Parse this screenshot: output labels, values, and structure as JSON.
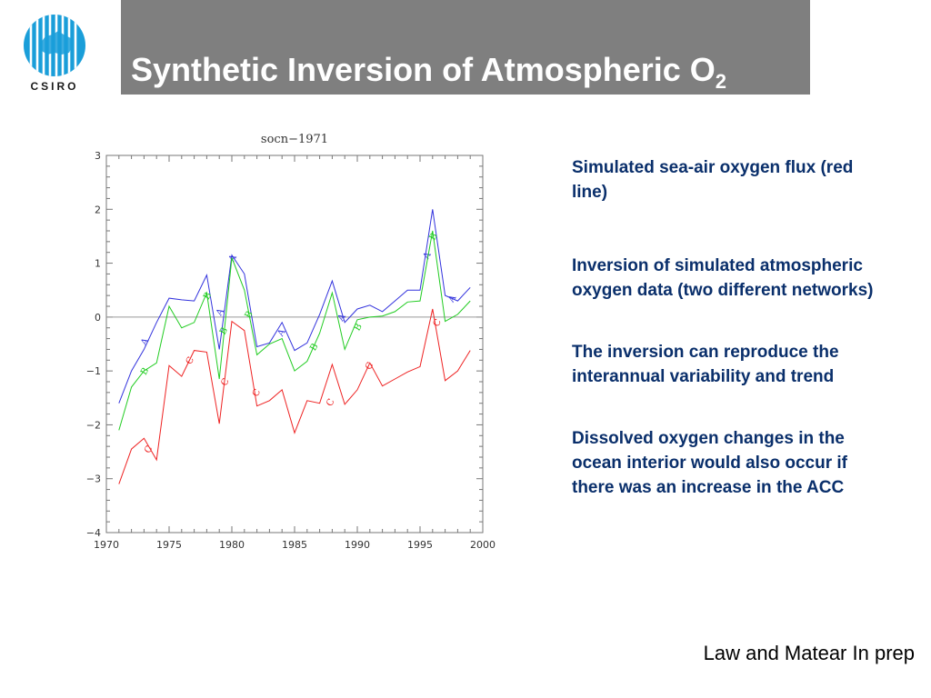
{
  "logo": {
    "text": "CSIRO"
  },
  "slide": {
    "title": "Synthetic Inversion of Atmospheric O",
    "title_subscript": "2",
    "text1": "Simulated sea-air oxygen flux (red line)",
    "text2": "Inversion of simulated atmospheric oxygen data (two different networks)",
    "text3": "The inversion can reproduce the interannual variability and trend",
    "text4": "Dissolved oxygen changes in the ocean interior would also occur if there was an increase in the ACC",
    "credit": "Law and Matear In prep"
  },
  "colors": {
    "title_bar": "#7f7f7f",
    "body_text": "#0a2f6b",
    "logo": "#1a9ed9"
  },
  "chart_data": {
    "type": "line",
    "title": "socn−1971",
    "xlim": [
      1970,
      2000
    ],
    "ylim": [
      -4,
      3
    ],
    "xticks": [
      1970,
      1975,
      1980,
      1985,
      1990,
      1995,
      2000
    ],
    "yticks": [
      3,
      2,
      1,
      0,
      -1,
      -2,
      -3,
      -4
    ],
    "zero_line": true,
    "series": [
      {
        "label_char": "A",
        "color": "#3333dd",
        "x": [
          1971,
          1972,
          1973,
          1974,
          1975,
          1976,
          1977,
          1978,
          1979,
          1980,
          1981,
          1982,
          1983,
          1984,
          1985,
          1986,
          1987,
          1988,
          1989,
          1990,
          1991,
          1992,
          1993,
          1994,
          1995,
          1996,
          1997,
          1998,
          1999
        ],
        "values": [
          -1.6,
          -1.0,
          -0.6,
          -0.1,
          0.35,
          0.32,
          0.3,
          0.78,
          -0.6,
          1.15,
          0.8,
          -0.55,
          -0.48,
          -0.1,
          -0.62,
          -0.48,
          0.05,
          0.67,
          -0.1,
          0.15,
          0.22,
          0.1,
          0.3,
          0.5,
          0.5,
          2.0,
          0.4,
          0.3,
          0.55
        ],
        "markers": [
          [
            1973,
            -0.45
          ],
          [
            1979,
            0.1
          ],
          [
            1980,
            1.1
          ],
          [
            1983.9,
            -0.28
          ],
          [
            1988.7,
            0.0
          ],
          [
            1995.5,
            1.15
          ],
          [
            1997.5,
            0.35
          ]
        ]
      },
      {
        "label_char": "B",
        "color": "#22cc22",
        "x": [
          1971,
          1972,
          1973,
          1974,
          1975,
          1976,
          1977,
          1978,
          1979,
          1980,
          1981,
          1982,
          1983,
          1984,
          1985,
          1986,
          1987,
          1988,
          1989,
          1990,
          1991,
          1992,
          1993,
          1994,
          1995,
          1996,
          1997,
          1998,
          1999
        ],
        "values": [
          -2.1,
          -1.3,
          -1.0,
          -0.85,
          0.2,
          -0.2,
          -0.1,
          0.45,
          -1.15,
          1.1,
          0.5,
          -0.7,
          -0.5,
          -0.4,
          -1.0,
          -0.82,
          -0.3,
          0.45,
          -0.6,
          -0.05,
          0.0,
          0.02,
          0.1,
          0.28,
          0.3,
          1.6,
          -0.08,
          0.05,
          0.3
        ],
        "markers": [
          [
            1973,
            -1.0
          ],
          [
            1978,
            0.4
          ],
          [
            1979.3,
            -0.25
          ],
          [
            1981.3,
            0.05
          ],
          [
            1986.5,
            -0.55
          ],
          [
            1990,
            -0.18
          ],
          [
            1996,
            1.5
          ]
        ]
      },
      {
        "label_char": "C",
        "color": "#ee2222",
        "x": [
          1971,
          1972,
          1973,
          1974,
          1975,
          1976,
          1977,
          1978,
          1979,
          1980,
          1981,
          1982,
          1983,
          1984,
          1985,
          1986,
          1987,
          1988,
          1989,
          1990,
          1991,
          1992,
          1993,
          1994,
          1995,
          1996,
          1997,
          1998,
          1999
        ],
        "values": [
          -3.1,
          -2.45,
          -2.25,
          -2.65,
          -0.9,
          -1.1,
          -0.62,
          -0.65,
          -1.98,
          -0.08,
          -0.25,
          -1.65,
          -1.55,
          -1.35,
          -2.15,
          -1.55,
          -1.6,
          -0.88,
          -1.62,
          -1.35,
          -0.85,
          -1.28,
          -1.15,
          -1.02,
          -0.92,
          0.15,
          -1.18,
          -1.0,
          -0.62
        ],
        "markers": [
          [
            1973.3,
            -2.45
          ],
          [
            1976.6,
            -0.8
          ],
          [
            1979.4,
            -1.2
          ],
          [
            1981.9,
            -1.4
          ],
          [
            1987.8,
            -1.58
          ],
          [
            1990.9,
            -0.9
          ],
          [
            1996.3,
            -0.1
          ]
        ]
      }
    ]
  }
}
